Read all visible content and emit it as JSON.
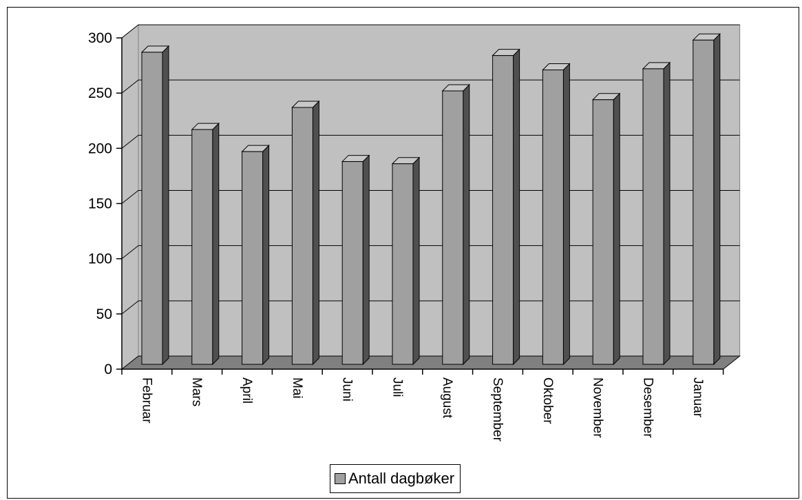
{
  "chart_data": {
    "type": "bar",
    "categories": [
      "Februar",
      "Mars",
      "April",
      "Mai",
      "Juni",
      "Juli",
      "August",
      "September",
      "Oktober",
      "November",
      "Desember",
      "Januar"
    ],
    "series": [
      {
        "name": "Antall dagbøker",
        "values": [
          287,
          217,
          197,
          237,
          188,
          186,
          252,
          284,
          271,
          244,
          272,
          298
        ]
      }
    ],
    "ylim": [
      0,
      300
    ],
    "yticks": [
      "0",
      "50",
      "100",
      "150",
      "200",
      "250",
      "300"
    ],
    "grid": true,
    "legend_position": "bottom",
    "style": "3d"
  },
  "colors": {
    "plot_wall": "#c0c0c0",
    "floor": "#808080",
    "bar_front": "#a0a0a0",
    "bar_top": "#c8c8c8",
    "bar_side": "#505050"
  }
}
